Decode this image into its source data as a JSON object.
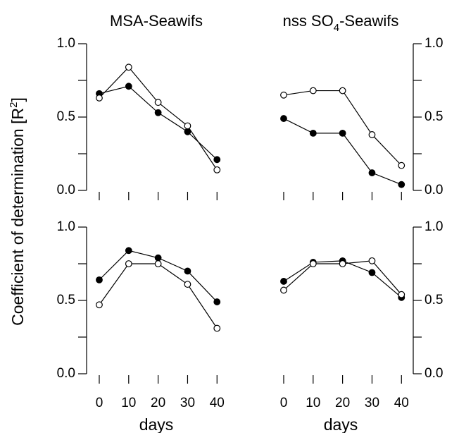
{
  "ylabel": [
    "Coefficient of determination  [R",
    "2",
    "]"
  ],
  "chart_data": [
    {
      "type": "line",
      "title": [
        "MSA-Seawifs"
      ],
      "yaxis_side": "left",
      "x": [
        0,
        10,
        20,
        30,
        40
      ],
      "xlim": [
        -4.3,
        44
      ],
      "xtick_marks": [
        0,
        10,
        20,
        30,
        40
      ],
      "ylim": [
        0,
        1
      ],
      "yticks": [
        {
          "value": 0,
          "label": "0.0"
        },
        {
          "value": 0.5,
          "label": "0.5"
        },
        {
          "value": 1,
          "label": "1.0"
        }
      ],
      "minor_yticks": [
        0.25,
        0.75
      ],
      "series": [
        {
          "color": "#000000",
          "fill": "#000000",
          "values": [
            0.66,
            0.71,
            0.53,
            0.4,
            0.21
          ]
        },
        {
          "color": "#000000",
          "fill": "#ffffff",
          "values": [
            0.63,
            0.84,
            0.6,
            0.44,
            0.14
          ]
        }
      ]
    },
    {
      "type": "line",
      "title": [
        "nss SO",
        "4",
        "-Seawifs"
      ],
      "yaxis_side": "right",
      "x": [
        0,
        10,
        20,
        30,
        40
      ],
      "xlim": [
        -4.3,
        44
      ],
      "xtick_marks": [
        0,
        10,
        20,
        30,
        40
      ],
      "ylim": [
        0,
        1
      ],
      "yticks": [
        {
          "value": 0,
          "label": "0.0"
        },
        {
          "value": 0.5,
          "label": "0.5"
        },
        {
          "value": 1,
          "label": "1.0"
        }
      ],
      "minor_yticks": [
        0.25,
        0.75
      ],
      "series": [
        {
          "color": "#000000",
          "fill": "#000000",
          "values": [
            0.49,
            0.39,
            0.39,
            0.12,
            0.04
          ]
        },
        {
          "color": "#000000",
          "fill": "#ffffff",
          "values": [
            0.65,
            0.68,
            0.68,
            0.38,
            0.17
          ]
        }
      ]
    },
    {
      "type": "line",
      "yaxis_side": "left",
      "xlabel": "days",
      "x": [
        0,
        10,
        20,
        30,
        40
      ],
      "xlim": [
        -4.3,
        44
      ],
      "xticks": [
        0,
        10,
        20,
        30,
        40
      ],
      "ylim": [
        0,
        1
      ],
      "yticks": [
        {
          "value": 0,
          "label": "0.0"
        },
        {
          "value": 0.5,
          "label": "0.5"
        },
        {
          "value": 1,
          "label": "1.0"
        }
      ],
      "minor_yticks": [
        0.25,
        0.75
      ],
      "series": [
        {
          "color": "#000000",
          "fill": "#000000",
          "values": [
            0.64,
            0.84,
            0.79,
            0.7,
            0.49
          ]
        },
        {
          "color": "#000000",
          "fill": "#ffffff",
          "values": [
            0.47,
            0.75,
            0.75,
            0.61,
            0.31
          ]
        }
      ]
    },
    {
      "type": "line",
      "yaxis_side": "right",
      "xlabel": "days",
      "x": [
        0,
        10,
        20,
        30,
        40
      ],
      "xlim": [
        -4.3,
        44
      ],
      "xticks": [
        0,
        10,
        20,
        30,
        40
      ],
      "ylim": [
        0,
        1
      ],
      "yticks": [
        {
          "value": 0,
          "label": "0.0"
        },
        {
          "value": 0.5,
          "label": "0.5"
        },
        {
          "value": 1,
          "label": "1.0"
        }
      ],
      "minor_yticks": [
        0.25,
        0.75
      ],
      "series": [
        {
          "color": "#000000",
          "fill": "#000000",
          "values": [
            0.63,
            0.76,
            0.77,
            0.69,
            0.52
          ]
        },
        {
          "color": "#000000",
          "fill": "#ffffff",
          "values": [
            0.57,
            0.75,
            0.75,
            0.77,
            0.54
          ]
        }
      ]
    }
  ]
}
